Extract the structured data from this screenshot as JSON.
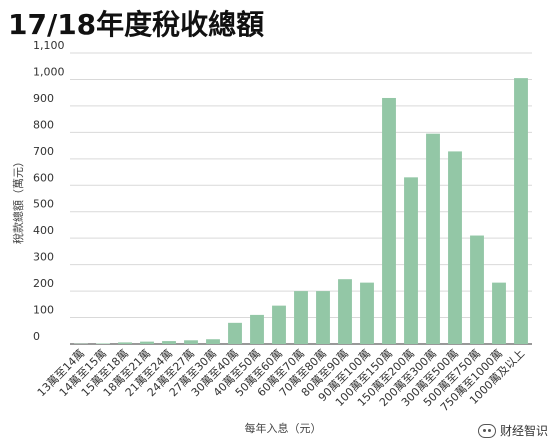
{
  "chart_data": {
    "type": "bar",
    "title": "17/18年度稅收總額",
    "xlabel": "每年入息（元）",
    "ylabel": "稅款總額（萬元）",
    "ylim": [
      0,
      1100
    ],
    "yticks": [
      0,
      100,
      200,
      300,
      400,
      500,
      600,
      700,
      800,
      900,
      1000,
      1100
    ],
    "ytick_labels": [
      "0",
      "100",
      "200",
      "300",
      "400",
      "500",
      "600",
      "700",
      "800",
      "900",
      "1,000",
      "1,100"
    ],
    "grid": true,
    "bar_color": "#93c7a6",
    "categories": [
      "13萬至14萬",
      "14萬至15萬",
      "15萬至18萬",
      "18萬至21萬",
      "21萬至24萬",
      "24萬至27萬",
      "27萬至30萬",
      "30萬至40萬",
      "40萬至50萬",
      "50萬至60萬",
      "60萬至70萬",
      "70萬至80萬",
      "80萬至90萬",
      "90萬至100萬",
      "100萬至150萬",
      "150萬至200萬",
      "200萬至300萬",
      "300萬至500萬",
      "500萬至750萬",
      "750萬至1000萬",
      "1000萬及以上"
    ],
    "values": [
      1,
      2,
      6,
      9,
      11,
      14,
      18,
      80,
      110,
      145,
      200,
      200,
      245,
      232,
      930,
      630,
      795,
      728,
      410,
      232,
      1005
    ]
  },
  "watermark": {
    "text": "财经智识",
    "icon": "wechat-icon"
  }
}
